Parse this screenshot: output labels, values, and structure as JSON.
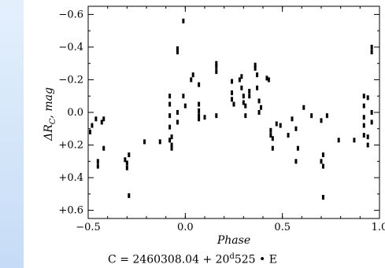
{
  "chart_data": {
    "type": "scatter",
    "xlabel": "Phase",
    "ylabel": "ΔR",
    "ylabel_subscript": "C",
    "ylabel_suffix": ", mag",
    "xlim": [
      -0.5,
      1.0
    ],
    "ylim": [
      -0.65,
      0.65
    ],
    "y_inverted": true,
    "x_ticks": [
      -0.5,
      0.0,
      0.5,
      1.0
    ],
    "x_tick_labels": [
      "−0.5",
      "0.0",
      "0.5",
      "1.0"
    ],
    "y_ticks": [
      -0.6,
      -0.4,
      -0.2,
      0.0,
      0.2,
      0.4,
      0.6
    ],
    "y_tick_labels": [
      "−0.6",
      "−0.4",
      "−0.2",
      "0.0",
      "+0.2",
      "+0.4",
      "+0.6"
    ],
    "grid": false,
    "marker_color": "#000000",
    "points": [
      [
        -0.49,
        0.12
      ],
      [
        -0.48,
        0.08
      ],
      [
        -0.46,
        0.04
      ],
      [
        -0.45,
        0.3
      ],
      [
        -0.45,
        0.33
      ],
      [
        -0.43,
        0.06
      ],
      [
        -0.42,
        0.04
      ],
      [
        -0.42,
        0.22
      ],
      [
        -0.31,
        0.29
      ],
      [
        -0.3,
        0.31
      ],
      [
        -0.3,
        0.34
      ],
      [
        -0.29,
        0.26
      ],
      [
        -0.29,
        0.51
      ],
      [
        -0.21,
        0.18
      ],
      [
        -0.13,
        0.18
      ],
      [
        -0.08,
        0.17
      ],
      [
        -0.08,
        -0.1
      ],
      [
        -0.08,
        -0.05
      ],
      [
        -0.08,
        0.02
      ],
      [
        -0.08,
        0.09
      ],
      [
        -0.07,
        0.15
      ],
      [
        -0.07,
        0.2
      ],
      [
        -0.07,
        0.22
      ],
      [
        -0.04,
        -0.37
      ],
      [
        -0.04,
        -0.39
      ],
      [
        -0.04,
        0.0
      ],
      [
        -0.04,
        0.06
      ],
      [
        -0.01,
        -0.56
      ],
      [
        -0.01,
        -0.1
      ],
      [
        0.0,
        -0.04
      ],
      [
        0.03,
        -0.2
      ],
      [
        0.04,
        -0.23
      ],
      [
        0.07,
        -0.05
      ],
      [
        0.07,
        -0.17
      ],
      [
        0.07,
        -0.01
      ],
      [
        0.07,
        0.02
      ],
      [
        0.07,
        0.04
      ],
      [
        0.1,
        0.03
      ],
      [
        0.16,
        -0.25
      ],
      [
        0.16,
        -0.28
      ],
      [
        0.16,
        -0.3
      ],
      [
        0.16,
        0.02
      ],
      [
        0.24,
        -0.19
      ],
      [
        0.24,
        -0.12
      ],
      [
        0.24,
        -0.08
      ],
      [
        0.25,
        -0.05
      ],
      [
        0.28,
        -0.2
      ],
      [
        0.29,
        -0.22
      ],
      [
        0.29,
        -0.15
      ],
      [
        0.3,
        -0.1
      ],
      [
        0.3,
        -0.06
      ],
      [
        0.31,
        -0.04
      ],
      [
        0.31,
        0.02
      ],
      [
        0.33,
        -0.1
      ],
      [
        0.33,
        -0.13
      ],
      [
        0.36,
        -0.27
      ],
      [
        0.36,
        -0.29
      ],
      [
        0.37,
        -0.23
      ],
      [
        0.37,
        -0.15
      ],
      [
        0.38,
        0.0
      ],
      [
        0.38,
        -0.07
      ],
      [
        0.39,
        -0.03
      ],
      [
        0.42,
        -0.21
      ],
      [
        0.43,
        -0.2
      ],
      [
        0.44,
        0.11
      ],
      [
        0.44,
        0.14
      ],
      [
        0.45,
        0.16
      ],
      [
        0.45,
        0.22
      ],
      [
        0.47,
        0.07
      ],
      [
        0.49,
        0.08
      ],
      [
        0.53,
        0.14
      ],
      [
        0.55,
        0.04
      ],
      [
        0.57,
        0.1
      ],
      [
        0.57,
        0.3
      ],
      [
        0.58,
        0.22
      ],
      [
        0.61,
        -0.03
      ],
      [
        0.65,
        0.02
      ],
      [
        0.7,
        0.05
      ],
      [
        0.7,
        0.3
      ],
      [
        0.71,
        0.33
      ],
      [
        0.71,
        0.26
      ],
      [
        0.71,
        0.52
      ],
      [
        0.73,
        0.02
      ],
      [
        0.79,
        0.17
      ],
      [
        0.87,
        0.17
      ],
      [
        0.92,
        0.03
      ],
      [
        0.92,
        -0.04
      ],
      [
        0.92,
        -0.1
      ],
      [
        0.92,
        0.08
      ],
      [
        0.92,
        0.14
      ],
      [
        0.94,
        0.15
      ],
      [
        0.94,
        0.2
      ],
      [
        0.94,
        -0.09
      ],
      [
        0.96,
        -0.37
      ],
      [
        0.96,
        -0.4
      ],
      [
        0.96,
        0.0
      ],
      [
        0.96,
        0.06
      ]
    ]
  },
  "caption": {
    "prefix": "C = 2460308.04 + 20",
    "superscript": "d",
    "suffix": "525 • E"
  }
}
